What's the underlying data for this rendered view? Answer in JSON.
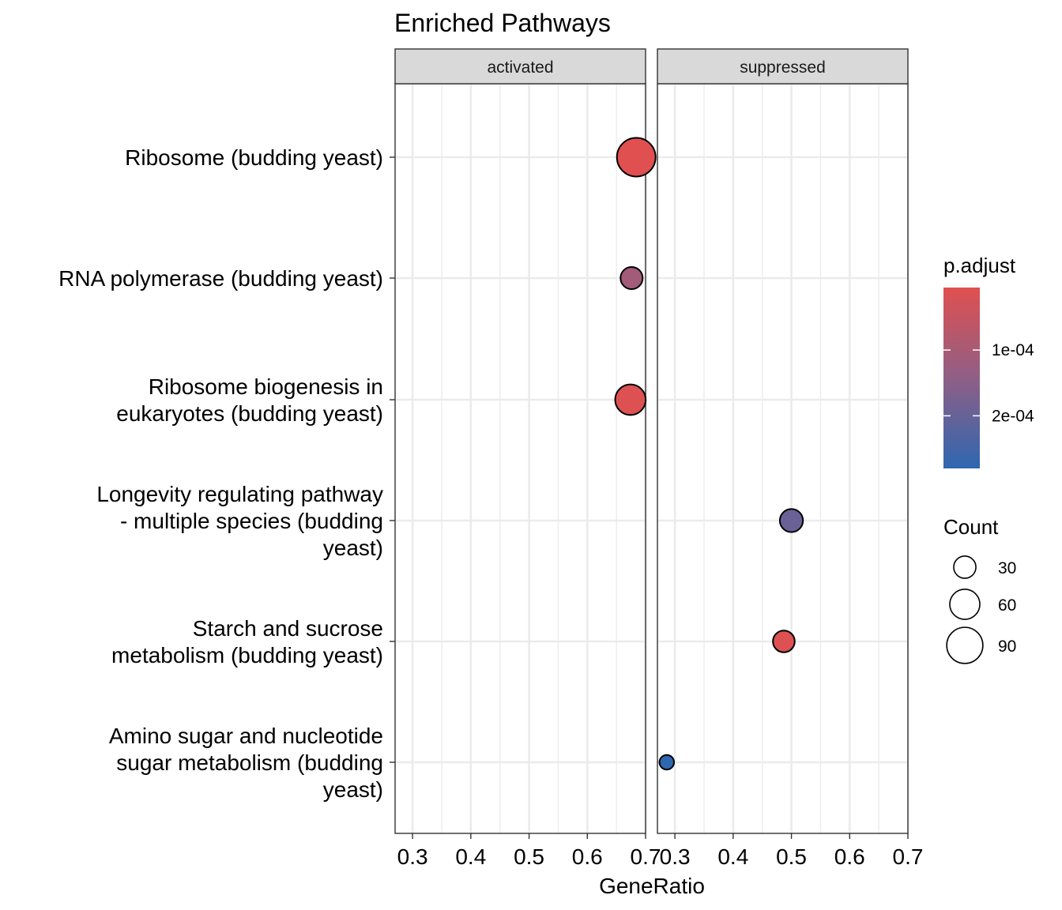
{
  "chart_data": {
    "type": "scatter",
    "title": "Enriched Pathways",
    "xlabel": "GeneRatio",
    "ylabel": "",
    "xlim": [
      0.27,
      0.7
    ],
    "x_ticks": [
      "0.3",
      "0.4",
      "0.5",
      "0.6",
      "0.7"
    ],
    "x_tick_values": [
      0.3,
      0.4,
      0.5,
      0.6,
      0.7
    ],
    "grid": true,
    "legend_position": "right",
    "facets": [
      "activated",
      "suppressed"
    ],
    "categories": [
      [
        "Ribosome (budding yeast)"
      ],
      [
        "RNA polymerase (budding yeast)"
      ],
      [
        "Ribosome biogenesis in",
        "eukaryotes (budding yeast)"
      ],
      [
        "Longevity regulating pathway",
        "- multiple species (budding",
        "yeast)"
      ],
      [
        "Starch and sucrose",
        "metabolism (budding yeast)"
      ],
      [
        "Amino sugar and nucleotide",
        "sugar metabolism (budding",
        "yeast)"
      ]
    ],
    "points": [
      {
        "facet": "activated",
        "category_index": 0,
        "x": 0.684,
        "count": 95,
        "p_adjust": 5e-06
      },
      {
        "facet": "activated",
        "category_index": 1,
        "x": 0.676,
        "count": 25,
        "p_adjust": 0.00011
      },
      {
        "facet": "activated",
        "category_index": 2,
        "x": 0.674,
        "count": 55,
        "p_adjust": 1e-05
      },
      {
        "facet": "suppressed",
        "category_index": 3,
        "x": 0.5,
        "count": 28,
        "p_adjust": 0.000195
      },
      {
        "facet": "suppressed",
        "category_index": 4,
        "x": 0.487,
        "count": 24,
        "p_adjust": 1e-05
      },
      {
        "facet": "suppressed",
        "category_index": 5,
        "x": 0.286,
        "count": 8,
        "p_adjust": 0.00028
      }
    ],
    "color_legend": {
      "title": "p.adjust",
      "tick_labels": [
        "1e-04",
        "2e-04"
      ],
      "tick_values": [
        0.0001,
        0.0002
      ],
      "range": [
        5e-06,
        0.00028
      ],
      "low_color": "#e05050",
      "mid_color": "#8f5f86",
      "high_color": "#2e67b0"
    },
    "size_legend": {
      "title": "Count",
      "entries": [
        {
          "label": "30",
          "value": 30
        },
        {
          "label": "60",
          "value": 60
        },
        {
          "label": "90",
          "value": 90
        }
      ]
    }
  }
}
